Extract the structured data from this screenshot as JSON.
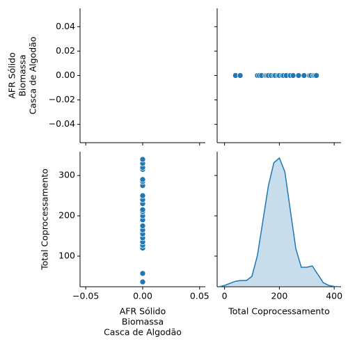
{
  "chart_data": [
    {
      "type": "empty",
      "ylabel": [
        "AFR Sólido",
        "Biomassa",
        "Casca de Algodão"
      ],
      "xlim": [
        -0.055,
        0.055
      ],
      "xticks": [
        {
          "value": -0.05,
          "label": "−0.05"
        },
        {
          "value": 0,
          "label": "0.00"
        },
        0.05
      ],
      "xtick_labels": false,
      "ylim": [
        -0.055,
        0.055
      ],
      "yticks": [
        0.04,
        0.02,
        {
          "value": 0,
          "label": "0.00"
        },
        {
          "value": -0.02,
          "label": "−0.02"
        },
        {
          "value": -0.04,
          "label": "−0.04"
        }
      ],
      "ytick_labels": true
    },
    {
      "type": "scatter",
      "color": "#1f77b4",
      "xlim": [
        -27,
        425
      ],
      "xticks": [
        0,
        200,
        400
      ],
      "xtick_labels": false,
      "ylim": [
        -0.055,
        0.055
      ],
      "yticks": [
        0.04,
        0.02,
        0,
        -0.02,
        -0.04
      ],
      "ytick_labels": false,
      "x": [
        40,
        57,
        120,
        127,
        135,
        150,
        155,
        160,
        170,
        180,
        185,
        195,
        200,
        210,
        215,
        225,
        240,
        250,
        270,
        290,
        310,
        315,
        325,
        330,
        335
      ],
      "y": [
        0,
        0,
        0,
        0,
        0,
        0,
        0,
        0,
        0,
        0,
        0,
        0,
        0,
        0,
        0,
        0,
        0,
        0,
        0,
        0,
        0,
        0,
        0,
        0,
        0
      ]
    },
    {
      "type": "scatter",
      "color": "#1f77b4",
      "xlabel": [
        "AFR Sólido",
        "Biomassa",
        "Casca de Algodão"
      ],
      "ylabel": [
        "Total Coprocessamento"
      ],
      "xlim": [
        -0.055,
        0.055
      ],
      "xticks": [
        {
          "value": -0.05,
          "label": "−0.05"
        },
        {
          "value": 0,
          "label": "0.00"
        },
        0.05
      ],
      "xtick_labels": true,
      "ylim": [
        24,
        359
      ],
      "yticks": [
        100,
        200,
        300
      ],
      "ytick_labels": true,
      "x": [
        0,
        0,
        0,
        0,
        0,
        0,
        0,
        0,
        0,
        0,
        0,
        0,
        0,
        0,
        0,
        0,
        0,
        0,
        0,
        0,
        0,
        0,
        0
      ],
      "y": [
        36,
        57,
        120,
        127,
        135,
        145,
        155,
        165,
        175,
        190,
        200,
        210,
        215,
        230,
        240,
        250,
        275,
        285,
        290,
        315,
        320,
        330,
        340
      ]
    },
    {
      "type": "kde",
      "color": "#1f77b4",
      "xlabel": [
        "Total Coprocessamento"
      ],
      "xlim": [
        -27,
        425
      ],
      "xticks": [
        0,
        200,
        400
      ],
      "xtick_labels": true,
      "ylim": [
        24,
        359
      ],
      "yticks": [
        100,
        200,
        300
      ],
      "ytick_labels": false,
      "density_lim": [
        0,
        0.00713
      ],
      "x": [
        -20,
        0,
        20,
        40,
        60,
        80,
        100,
        120,
        140,
        160,
        180,
        200,
        220,
        240,
        260,
        280,
        300,
        320,
        340,
        360,
        380,
        400,
        420
      ],
      "values": [
        0,
        7e-05,
        0.00018,
        0.00029,
        0.00033,
        0.00033,
        0.00055,
        0.00166,
        0.0035,
        0.00533,
        0.00655,
        0.0068,
        0.00607,
        0.00405,
        0.00202,
        0.00103,
        0.00103,
        0.0011,
        0.00066,
        0.00022,
        7e-05,
        2e-05,
        0
      ]
    }
  ]
}
